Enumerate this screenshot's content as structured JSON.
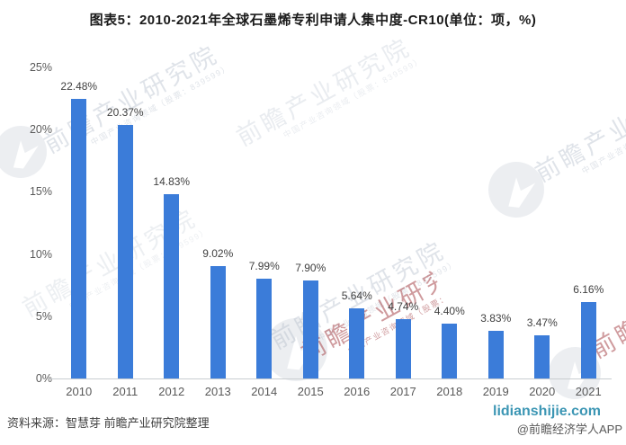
{
  "title": "图表5：2010-2021年全球石墨烯专利申请人集中度-CR10(单位：项，%)",
  "source_note": "资料来源：智慧芽 前瞻产业研究院整理",
  "footer": {
    "site": "lidianshijie.com",
    "credit": "@前瞻经济学人APP"
  },
  "watermark": {
    "big": "前瞻产业研究院",
    "small": "中国产业咨询领域（股票：839599）"
  },
  "colors": {
    "bar": "#3B7CD9",
    "axis_line": "#C9CDD1",
    "title_text": "#1A1A1A",
    "value_label": "#404040",
    "tick_label": "#595959",
    "site_link": "#3C96B4",
    "watermark_gray": "#AEB8C6",
    "watermark_red": "#A8494E"
  },
  "chart_data": {
    "type": "bar",
    "title": "图表5：2010-2021年全球石墨烯专利申请人集中度-CR10(单位：项，%)",
    "categories": [
      "2010",
      "2011",
      "2012",
      "2013",
      "2014",
      "2015",
      "2016",
      "2017",
      "2018",
      "2019",
      "2020",
      "2021"
    ],
    "values": [
      22.48,
      20.37,
      14.83,
      9.02,
      7.99,
      7.9,
      5.64,
      4.74,
      4.4,
      3.83,
      3.47,
      6.16
    ],
    "labels": [
      "22.48%",
      "20.37%",
      "14.83%",
      "9.02%",
      "7.99%",
      "7.90%",
      "5.64%",
      "4.74%",
      "4.40%",
      "3.83%",
      "3.47%",
      "6.16%"
    ],
    "xlabel": "",
    "ylabel": "",
    "ylim": [
      0,
      25
    ],
    "yticks": [
      "0%",
      "5%",
      "10%",
      "15%",
      "20%",
      "25%"
    ],
    "grid": false,
    "legend": false,
    "bar_color": "#3B7CD9"
  }
}
